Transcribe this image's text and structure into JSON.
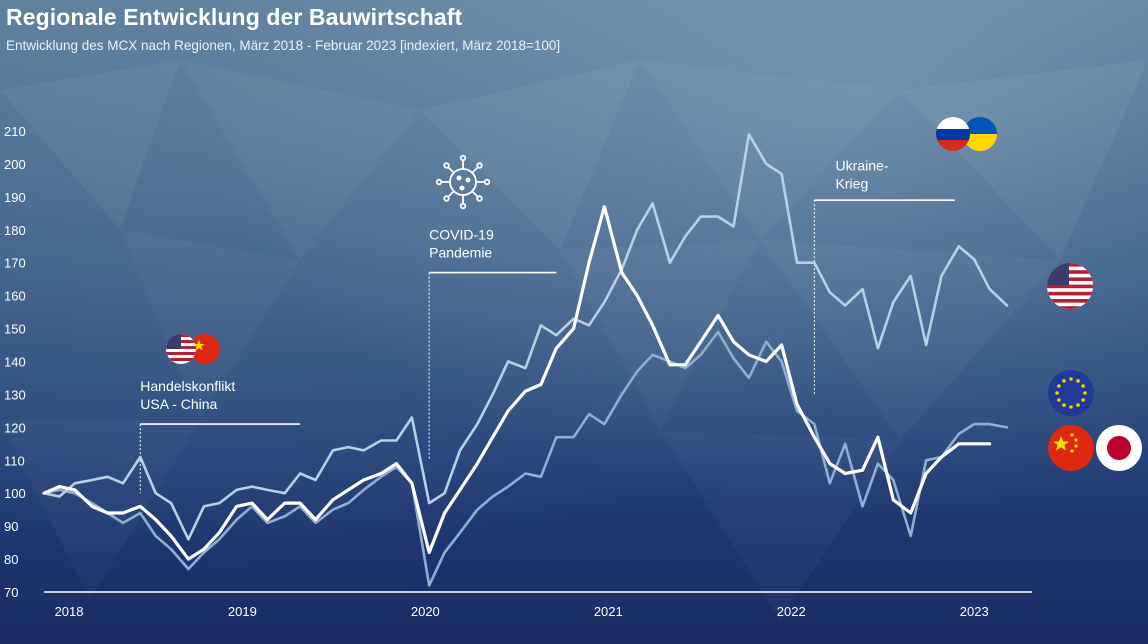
{
  "title": "Regionale Entwicklung der Bauwirtschaft",
  "subtitle": "Entwicklung des MCX nach Regionen, März 2018 - Februar 2023 [indexiert, März 2018=100]",
  "chart_data": {
    "type": "line",
    "ylim": [
      70,
      210
    ],
    "yticks": [
      70,
      80,
      90,
      100,
      110,
      120,
      130,
      140,
      150,
      160,
      170,
      180,
      190,
      200,
      210
    ],
    "xlim": [
      2018.17,
      2023.3
    ],
    "xticks": [
      {
        "label": "2018",
        "x": 2018.3
      },
      {
        "label": "2019",
        "x": 2019.2
      },
      {
        "label": "2020",
        "x": 2020.15
      },
      {
        "label": "2021",
        "x": 2021.1
      },
      {
        "label": "2022",
        "x": 2022.05
      },
      {
        "label": "2023",
        "x": 2023.0
      }
    ],
    "grid": false,
    "series": [
      {
        "color": "#ffffff",
        "width": 3.2,
        "values": [
          [
            2018.17,
            100
          ],
          [
            2018.25,
            102
          ],
          [
            2018.33,
            101
          ],
          [
            2018.42,
            96
          ],
          [
            2018.5,
            94
          ],
          [
            2018.58,
            94
          ],
          [
            2018.67,
            96
          ],
          [
            2018.75,
            92
          ],
          [
            2018.83,
            87
          ],
          [
            2018.92,
            80
          ],
          [
            2019.0,
            83
          ],
          [
            2019.08,
            88
          ],
          [
            2019.17,
            96
          ],
          [
            2019.25,
            97
          ],
          [
            2019.33,
            92
          ],
          [
            2019.42,
            97
          ],
          [
            2019.5,
            97
          ],
          [
            2019.58,
            92
          ],
          [
            2019.67,
            98
          ],
          [
            2019.75,
            101
          ],
          [
            2019.83,
            104
          ],
          [
            2019.92,
            106
          ],
          [
            2020.0,
            109
          ],
          [
            2020.08,
            103
          ],
          [
            2020.17,
            82
          ],
          [
            2020.25,
            94
          ],
          [
            2020.33,
            101
          ],
          [
            2020.42,
            109
          ],
          [
            2020.5,
            117
          ],
          [
            2020.58,
            125
          ],
          [
            2020.67,
            131
          ],
          [
            2020.75,
            133
          ],
          [
            2020.83,
            144
          ],
          [
            2020.92,
            150
          ],
          [
            2021.0,
            170
          ],
          [
            2021.08,
            187
          ],
          [
            2021.17,
            167
          ],
          [
            2021.25,
            160
          ],
          [
            2021.33,
            151
          ],
          [
            2021.42,
            139
          ],
          [
            2021.5,
            139
          ],
          [
            2021.58,
            146
          ],
          [
            2021.67,
            154
          ],
          [
            2021.75,
            146
          ],
          [
            2021.83,
            142
          ],
          [
            2021.92,
            140
          ],
          [
            2022.0,
            145
          ],
          [
            2022.08,
            127
          ],
          [
            2022.17,
            117
          ],
          [
            2022.25,
            109
          ],
          [
            2022.33,
            106
          ],
          [
            2022.42,
            107
          ],
          [
            2022.5,
            117
          ],
          [
            2022.58,
            98
          ],
          [
            2022.67,
            94
          ],
          [
            2022.75,
            106
          ],
          [
            2022.83,
            111
          ],
          [
            2022.92,
            115
          ],
          [
            2023.0,
            115
          ],
          [
            2023.08,
            115
          ]
        ]
      },
      {
        "color": "#b9d0e6",
        "width": 2.6,
        "values": [
          [
            2018.17,
            100
          ],
          [
            2018.25,
            99
          ],
          [
            2018.33,
            103
          ],
          [
            2018.42,
            104
          ],
          [
            2018.5,
            105
          ],
          [
            2018.58,
            103
          ],
          [
            2018.67,
            111
          ],
          [
            2018.75,
            100
          ],
          [
            2018.83,
            97
          ],
          [
            2018.92,
            86
          ],
          [
            2019.0,
            96
          ],
          [
            2019.08,
            97
          ],
          [
            2019.17,
            101
          ],
          [
            2019.25,
            102
          ],
          [
            2019.33,
            101
          ],
          [
            2019.42,
            100
          ],
          [
            2019.5,
            106
          ],
          [
            2019.58,
            104
          ],
          [
            2019.67,
            113
          ],
          [
            2019.75,
            114
          ],
          [
            2019.83,
            113
          ],
          [
            2019.92,
            116
          ],
          [
            2020.0,
            116
          ],
          [
            2020.08,
            123
          ],
          [
            2020.17,
            97
          ],
          [
            2020.25,
            100
          ],
          [
            2020.33,
            113
          ],
          [
            2020.42,
            121
          ],
          [
            2020.5,
            130
          ],
          [
            2020.58,
            140
          ],
          [
            2020.67,
            138
          ],
          [
            2020.75,
            151
          ],
          [
            2020.83,
            148
          ],
          [
            2020.92,
            153
          ],
          [
            2021.0,
            151
          ],
          [
            2021.08,
            158
          ],
          [
            2021.17,
            168
          ],
          [
            2021.25,
            180
          ],
          [
            2021.33,
            188
          ],
          [
            2021.42,
            170
          ],
          [
            2021.5,
            178
          ],
          [
            2021.58,
            184
          ],
          [
            2021.67,
            184
          ],
          [
            2021.75,
            181
          ],
          [
            2021.83,
            209
          ],
          [
            2021.92,
            200
          ],
          [
            2022.0,
            197
          ],
          [
            2022.08,
            170
          ],
          [
            2022.17,
            170
          ],
          [
            2022.25,
            161
          ],
          [
            2022.33,
            157
          ],
          [
            2022.42,
            162
          ],
          [
            2022.5,
            144
          ],
          [
            2022.58,
            158
          ],
          [
            2022.67,
            166
          ],
          [
            2022.75,
            145
          ],
          [
            2022.83,
            166
          ],
          [
            2022.92,
            175
          ],
          [
            2023.0,
            171
          ],
          [
            2023.08,
            162
          ],
          [
            2023.17,
            157
          ]
        ]
      },
      {
        "color": "#8fb0d2",
        "width": 2.6,
        "values": [
          [
            2018.17,
            100
          ],
          [
            2018.25,
            101
          ],
          [
            2018.33,
            100
          ],
          [
            2018.42,
            97
          ],
          [
            2018.5,
            94
          ],
          [
            2018.58,
            91
          ],
          [
            2018.67,
            94
          ],
          [
            2018.75,
            87
          ],
          [
            2018.83,
            83
          ],
          [
            2018.92,
            77
          ],
          [
            2019.0,
            82
          ],
          [
            2019.08,
            86
          ],
          [
            2019.17,
            92
          ],
          [
            2019.25,
            96
          ],
          [
            2019.33,
            91
          ],
          [
            2019.42,
            93
          ],
          [
            2019.5,
            96
          ],
          [
            2019.58,
            91
          ],
          [
            2019.67,
            95
          ],
          [
            2019.75,
            97
          ],
          [
            2019.83,
            101
          ],
          [
            2019.92,
            105
          ],
          [
            2020.0,
            108
          ],
          [
            2020.08,
            103
          ],
          [
            2020.17,
            72
          ],
          [
            2020.25,
            82
          ],
          [
            2020.33,
            88
          ],
          [
            2020.42,
            95
          ],
          [
            2020.5,
            99
          ],
          [
            2020.58,
            102
          ],
          [
            2020.67,
            106
          ],
          [
            2020.75,
            105
          ],
          [
            2020.83,
            117
          ],
          [
            2020.92,
            117
          ],
          [
            2021.0,
            124
          ],
          [
            2021.08,
            121
          ],
          [
            2021.17,
            130
          ],
          [
            2021.25,
            137
          ],
          [
            2021.33,
            142
          ],
          [
            2021.42,
            140
          ],
          [
            2021.5,
            138
          ],
          [
            2021.58,
            142
          ],
          [
            2021.67,
            149
          ],
          [
            2021.75,
            141
          ],
          [
            2021.83,
            135
          ],
          [
            2021.92,
            146
          ],
          [
            2022.0,
            140
          ],
          [
            2022.08,
            125
          ],
          [
            2022.17,
            121
          ],
          [
            2022.25,
            103
          ],
          [
            2022.33,
            115
          ],
          [
            2022.42,
            96
          ],
          [
            2022.5,
            109
          ],
          [
            2022.58,
            104
          ],
          [
            2022.67,
            87
          ],
          [
            2022.75,
            110
          ],
          [
            2022.83,
            111
          ],
          [
            2022.92,
            118
          ],
          [
            2023.0,
            121
          ],
          [
            2023.08,
            121
          ],
          [
            2023.17,
            120
          ]
        ]
      }
    ],
    "annotations": [
      {
        "lines": [
          "Handelskonflikt",
          "USA - China"
        ],
        "x": 2018.67,
        "label_x": 2018.67,
        "label_y": 131,
        "bar_y": 121,
        "bar_to": 2019.5,
        "base_y": 100
      },
      {
        "lines": [
          "COVID-19",
          "Pandemie"
        ],
        "x": 2020.17,
        "label_x": 2020.17,
        "label_y": 177,
        "bar_y": 167,
        "bar_to": 2020.83,
        "base_y": 110
      },
      {
        "lines": [
          "Ukraine-",
          "Krieg"
        ],
        "x": 2022.17,
        "label_x": 2022.28,
        "label_y": 198,
        "bar_y": 189,
        "bar_to": 2022.9,
        "base_y": 130
      }
    ]
  },
  "icons": {
    "usa_china_flags": [
      "usa-flag-icon",
      "china-flag-icon"
    ],
    "covid": "virus-icon",
    "russia_ukraine_flags": [
      "russia-flag-icon",
      "ukraine-flag-icon"
    ],
    "legend_flags": [
      "usa-flag-icon",
      "eu-flag-icon",
      "china-flag-icon",
      "japan-flag-icon"
    ]
  },
  "colors": {
    "white_series": "#ffffff",
    "light_series": "#b9d0e6",
    "mid_series": "#8fb0d2",
    "china_red": "#de2910",
    "eu_blue": "#1e3c96",
    "japan_red": "#bc002d"
  }
}
